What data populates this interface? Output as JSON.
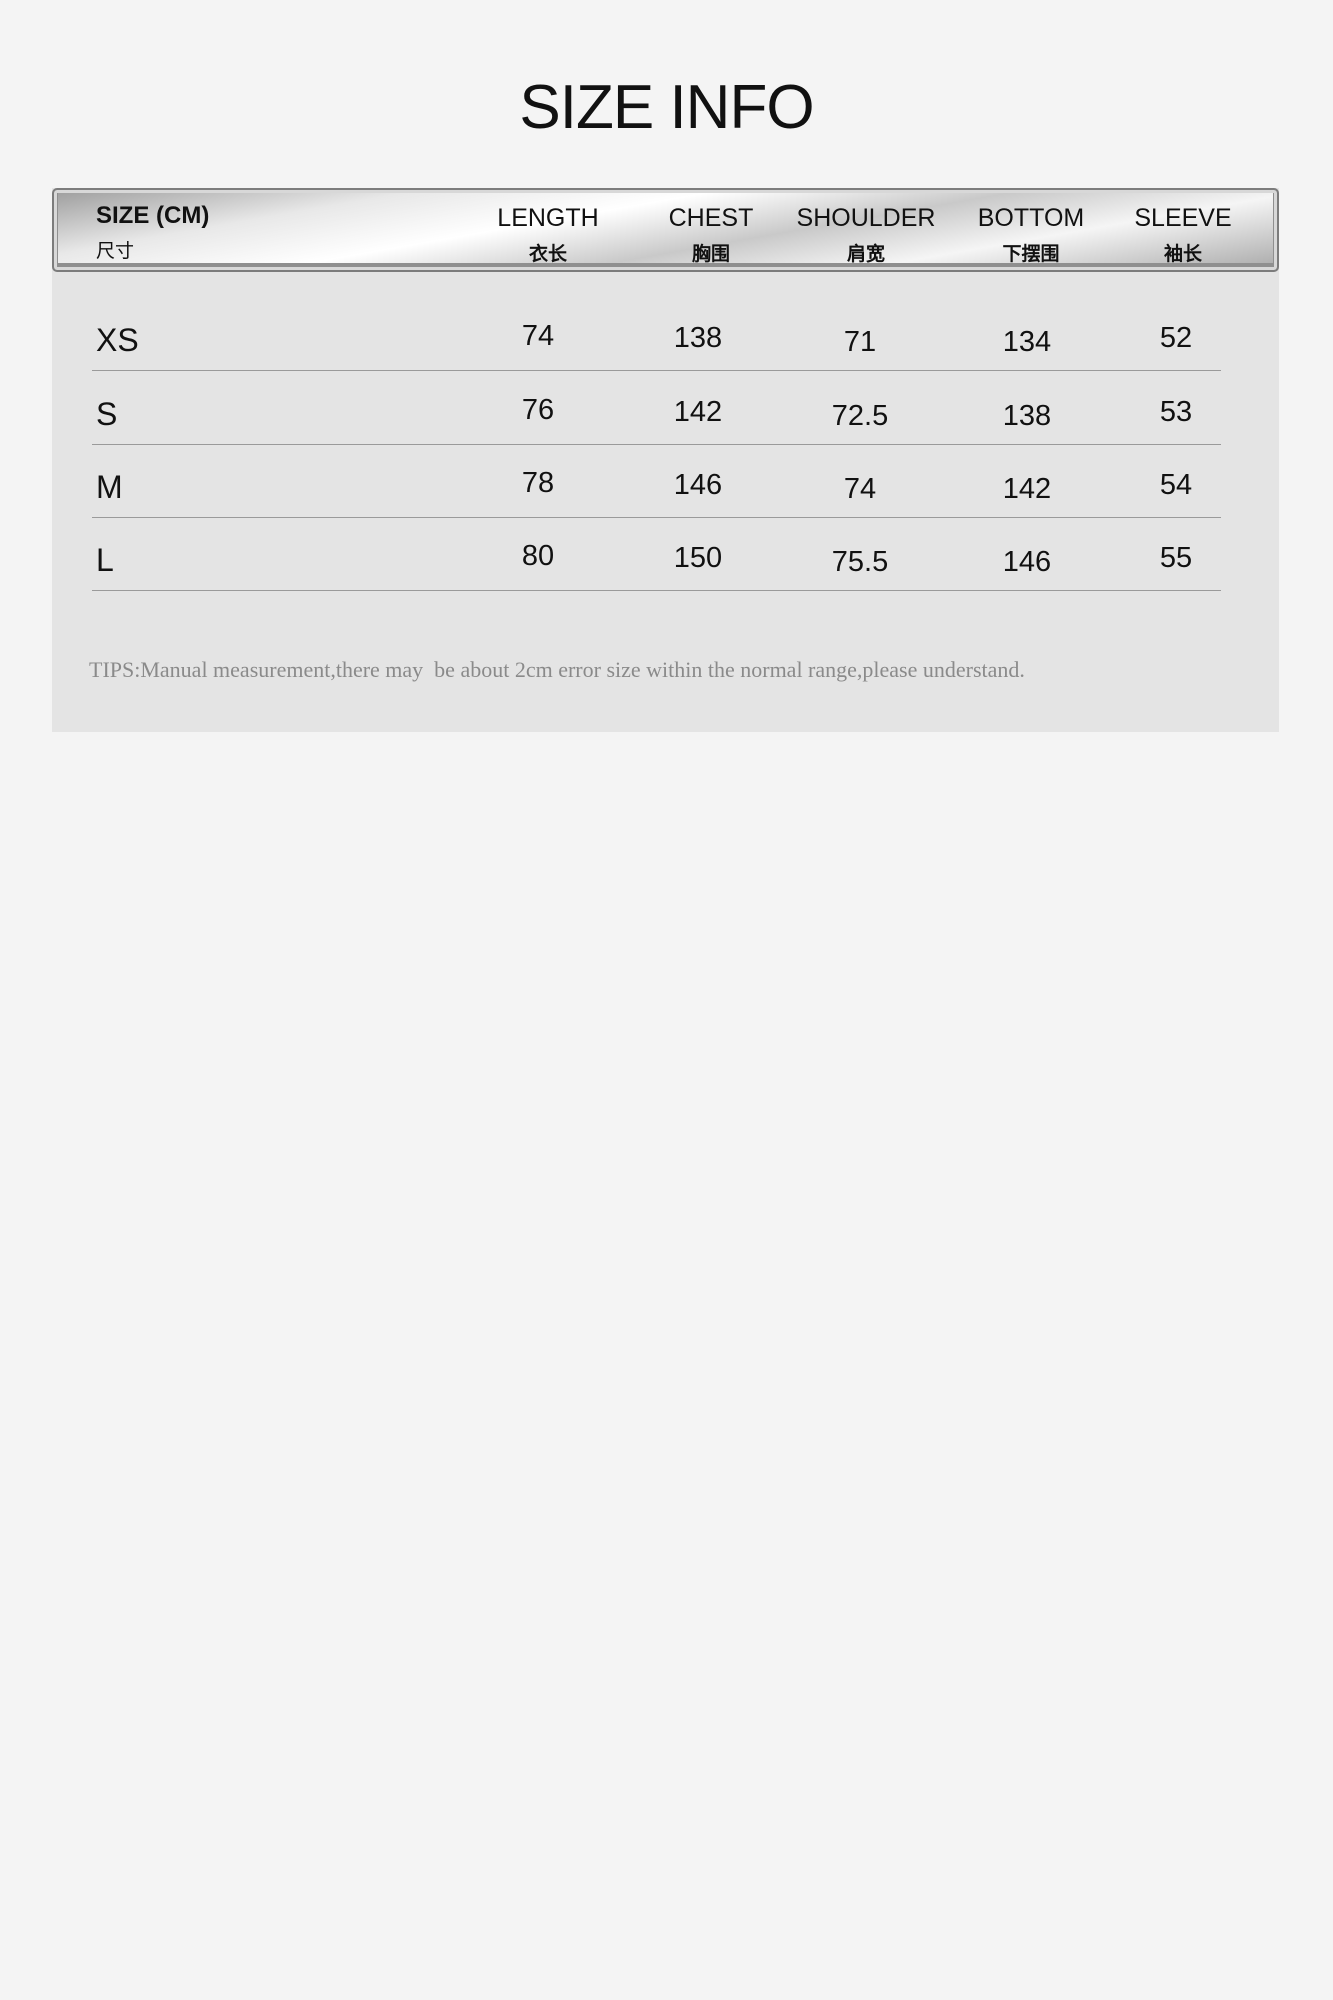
{
  "title": "SIZE INFO",
  "header": [
    {
      "en": "SIZE (CM)",
      "zh": "尺寸"
    },
    {
      "en": "LENGTH",
      "zh": "衣长"
    },
    {
      "en": "CHEST",
      "zh": "胸围"
    },
    {
      "en": "SHOULDER",
      "zh": "肩宽"
    },
    {
      "en": "BOTTOM",
      "zh": "下摆围"
    },
    {
      "en": "SLEEVE",
      "zh": "袖长"
    }
  ],
  "rows": [
    {
      "size": "XS",
      "values": [
        "74",
        "138",
        "71",
        "134",
        "52"
      ]
    },
    {
      "size": "S",
      "values": [
        "76",
        "142",
        "72.5",
        "138",
        "53"
      ]
    },
    {
      "size": "M",
      "values": [
        "78",
        "146",
        "74",
        "142",
        "54"
      ]
    },
    {
      "size": "L",
      "values": [
        "80",
        "150",
        "75.5",
        "146",
        "55"
      ]
    }
  ],
  "tips": "TIPS:Manual measurement,there may  be about 2cm error size within the normal range,please understand."
}
